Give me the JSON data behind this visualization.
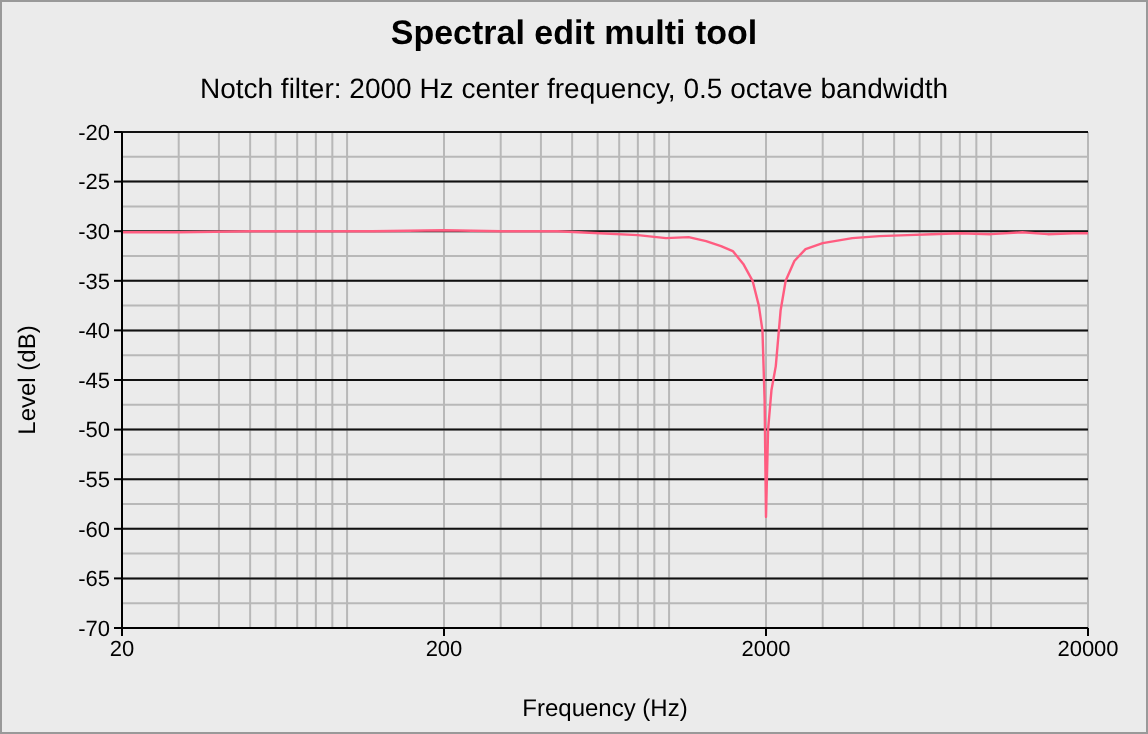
{
  "chart_data": {
    "type": "line",
    "title": "Spectral edit multi tool",
    "subtitle": "Notch filter: 2000 Hz center frequency, 0.5 octave bandwidth",
    "xlabel": "Frequency (Hz)",
    "ylabel": "Level (dB)",
    "x": [
      20,
      30,
      50,
      80,
      120,
      200,
      300,
      450,
      609,
      800,
      978,
      1150,
      1303,
      1450,
      1577,
      1700,
      1817,
      1900,
      1950,
      1980,
      2000,
      2030,
      2080,
      2145,
      2220,
      2302,
      2450,
      2654,
      3000,
      3707,
      4500,
      5500,
      6546,
      8000,
      10000,
      12500,
      15000,
      18000,
      20000
    ],
    "series": [
      {
        "color": "#ff5c80",
        "values": [
          -30.1,
          -30.1,
          -30,
          -30,
          -30,
          -29.9,
          -30,
          -30,
          -30.2,
          -30.4,
          -30.7,
          -30.6,
          -31,
          -31.5,
          -32,
          -33.3,
          -35,
          -37.5,
          -40,
          -47,
          -58.8,
          -50,
          -46,
          -43.6,
          -38,
          -35,
          -33,
          -31.8,
          -31.2,
          -30.7,
          -30.5,
          -30.4,
          -30.3,
          -30.2,
          -30.3,
          -30.1,
          -30.3,
          -30.2,
          -30.2
        ]
      }
    ],
    "xlim": [
      20,
      20000
    ],
    "xticks": [
      20,
      200,
      2000,
      20000
    ],
    "ylim": [
      -70,
      -20
    ],
    "yticks": [
      -70,
      -65,
      -60,
      -55,
      -50,
      -45,
      -40,
      -35,
      -30,
      -25,
      -20
    ],
    "log": "x",
    "grid": true,
    "marker": "none",
    "line_style": "solid"
  }
}
